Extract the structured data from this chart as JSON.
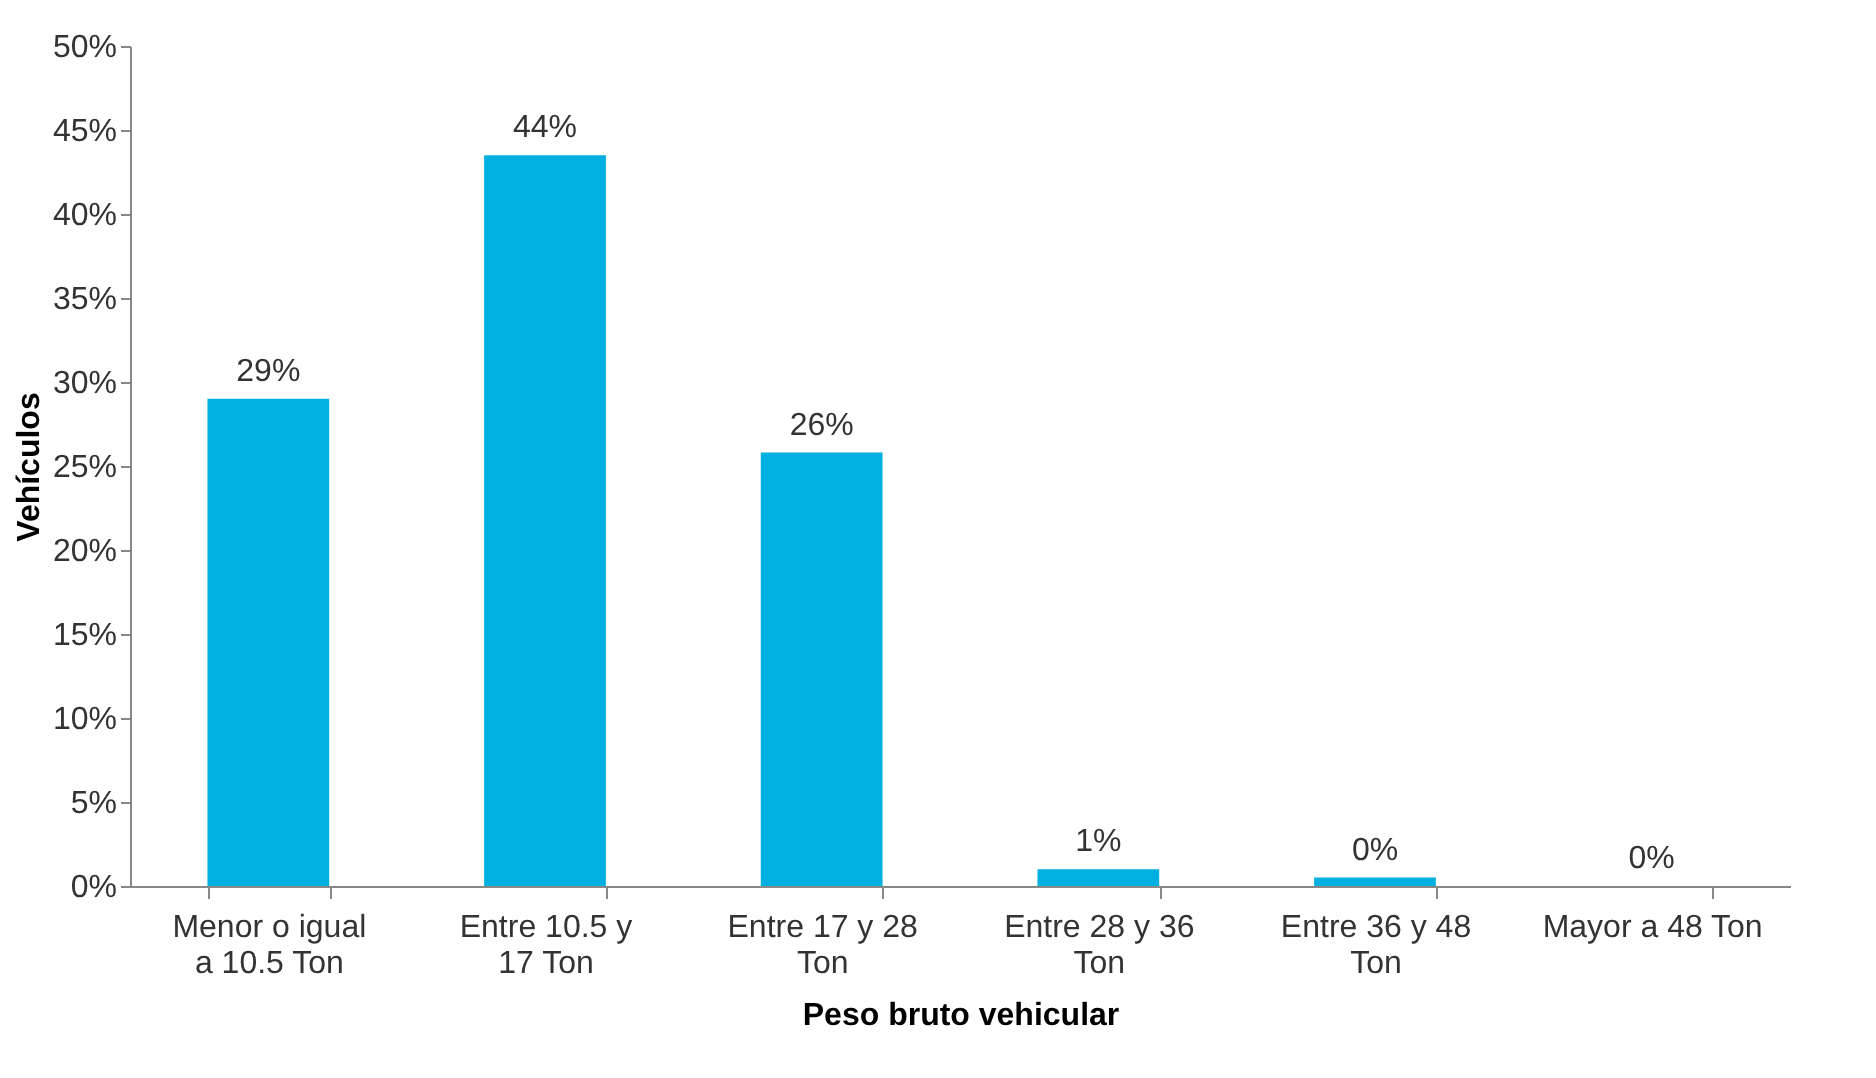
{
  "chart_data": {
    "type": "bar",
    "xlabel": "Peso bruto vehicular",
    "ylabel": "Vehículos",
    "categories": [
      "Menor o igual a 10.5 Ton",
      "Entre 10.5 y 17 Ton",
      "Entre 17 y 28 Ton",
      "Entre 28 y 36 Ton",
      "Entre 36 y 48 Ton",
      "Mayor a 48 Ton"
    ],
    "values": [
      29,
      43.5,
      25.8,
      1.0,
      0.5,
      0.0
    ],
    "value_labels": [
      "29%",
      "44%",
      "26%",
      "1%",
      "0%",
      "0%"
    ],
    "color": "#00b0e0",
    "ylim": [
      0,
      50
    ],
    "yticks": [
      {
        "value": 0,
        "label": "0%"
      },
      {
        "value": 5,
        "label": "5%"
      },
      {
        "value": 10,
        "label": "10%"
      },
      {
        "value": 15,
        "label": "15%"
      },
      {
        "value": 20,
        "label": "20%"
      },
      {
        "value": 25,
        "label": "25%"
      },
      {
        "value": 30,
        "label": "30%"
      },
      {
        "value": 35,
        "label": "35%"
      },
      {
        "value": 40,
        "label": "40%"
      },
      {
        "value": 45,
        "label": "45%"
      },
      {
        "value": 50,
        "label": "50%"
      }
    ],
    "grid": false
  }
}
